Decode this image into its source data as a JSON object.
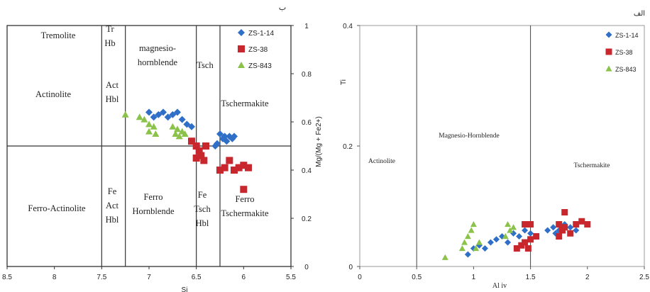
{
  "chart_data": [
    {
      "type": "scatter",
      "title": "ب",
      "xlabel": "Si",
      "ylabel": "Mg/(Mg + Fe2+)",
      "xlim": [
        8.5,
        5.5
      ],
      "ylim": [
        0,
        1
      ],
      "x_ticks": [
        "8.5",
        "8",
        "7.5",
        "7",
        "6.5",
        "6",
        "5.5"
      ],
      "y_ticks": [
        "0",
        "0.2",
        "0.4",
        "0.6",
        "0.8",
        "1"
      ],
      "legend_position": "top-right",
      "field_labels": [
        {
          "key": "tremolite",
          "lines": [
            "Tremolite"
          ]
        },
        {
          "key": "tr-hb",
          "lines": [
            "Tr",
            "Hb"
          ]
        },
        {
          "key": "magnesio-hornblende",
          "lines": [
            "magnesio-",
            "hornblende"
          ]
        },
        {
          "key": "tsch",
          "lines": [
            "Tsch"
          ]
        },
        {
          "key": "actinolite",
          "lines": [
            "Actinolite"
          ]
        },
        {
          "key": "act-hbl",
          "lines": [
            "Act",
            "Hbl"
          ]
        },
        {
          "key": "tschermakite",
          "lines": [
            "Tschermakite"
          ]
        },
        {
          "key": "ferro-actinolite",
          "lines": [
            "Ferro-Actinolite"
          ]
        },
        {
          "key": "fe-act-hbl",
          "lines": [
            "Fe",
            "Act",
            "Hbl"
          ]
        },
        {
          "key": "ferro-hornblende",
          "lines": [
            "Ferro",
            "Hornblende"
          ]
        },
        {
          "key": "fe-tsch-hbl",
          "lines": [
            "Fe",
            "Tsch",
            "Hbl"
          ]
        },
        {
          "key": "ferro-tschermakite",
          "lines": [
            "Ferro",
            "Tschermakite"
          ]
        }
      ],
      "boundaries": {
        "vertical_x": [
          7.5,
          7.25,
          6.5,
          6.25
        ],
        "horizontal_y": 0.5
      },
      "series": [
        {
          "name": "ZS-1-14",
          "color": "#2f6fc7",
          "marker": "diamond",
          "points": [
            [
              7.0,
              0.64
            ],
            [
              6.95,
              0.62
            ],
            [
              6.9,
              0.63
            ],
            [
              6.85,
              0.64
            ],
            [
              6.8,
              0.62
            ],
            [
              6.75,
              0.63
            ],
            [
              6.7,
              0.64
            ],
            [
              6.65,
              0.61
            ],
            [
              6.6,
              0.59
            ],
            [
              6.55,
              0.58
            ],
            [
              6.25,
              0.55
            ],
            [
              6.22,
              0.53
            ],
            [
              6.2,
              0.54
            ],
            [
              6.18,
              0.52
            ],
            [
              6.15,
              0.54
            ],
            [
              6.12,
              0.53
            ],
            [
              6.1,
              0.54
            ],
            [
              6.28,
              0.51
            ],
            [
              6.3,
              0.5
            ]
          ]
        },
        {
          "name": "ZS-38",
          "color": "#c8282d",
          "marker": "square",
          "points": [
            [
              6.55,
              0.52
            ],
            [
              6.5,
              0.5
            ],
            [
              6.47,
              0.48
            ],
            [
              6.45,
              0.46
            ],
            [
              6.42,
              0.44
            ],
            [
              6.5,
              0.45
            ],
            [
              6.4,
              0.5
            ],
            [
              6.15,
              0.44
            ],
            [
              6.2,
              0.41
            ],
            [
              6.1,
              0.4
            ],
            [
              6.05,
              0.41
            ],
            [
              6.0,
              0.42
            ],
            [
              5.95,
              0.41
            ],
            [
              6.25,
              0.4
            ],
            [
              6.0,
              0.32
            ]
          ]
        },
        {
          "name": "ZS-843",
          "color": "#8bc34a",
          "marker": "triangle",
          "points": [
            [
              7.25,
              0.63
            ],
            [
              7.1,
              0.62
            ],
            [
              7.05,
              0.61
            ],
            [
              7.0,
              0.59
            ],
            [
              6.95,
              0.58
            ],
            [
              7.0,
              0.56
            ],
            [
              6.93,
              0.55
            ],
            [
              6.75,
              0.58
            ],
            [
              6.7,
              0.57
            ],
            [
              6.65,
              0.56
            ],
            [
              6.62,
              0.55
            ],
            [
              6.72,
              0.55
            ],
            [
              6.68,
              0.54
            ]
          ]
        }
      ]
    },
    {
      "type": "scatter",
      "title": "الف",
      "xlabel": "Al iv",
      "ylabel": "Ti",
      "xlim": [
        0,
        2.5
      ],
      "ylim": [
        0,
        0.4
      ],
      "x_ticks": [
        "0",
        "0.5",
        "1",
        "1.5",
        "2",
        "2.5"
      ],
      "y_ticks": [
        "0",
        "0.2",
        "0.4"
      ],
      "legend_position": "top-right",
      "field_labels": [
        {
          "key": "actinolite",
          "lines": [
            "Actinolite"
          ]
        },
        {
          "key": "magnesio-hornblende",
          "lines": [
            "Magnesio-Hornblende"
          ]
        },
        {
          "key": "tschermakite",
          "lines": [
            "Tschermakite"
          ]
        }
      ],
      "boundaries": {
        "vertical_x": [
          0.5,
          1.5
        ]
      },
      "series": [
        {
          "name": "ZS-1-14",
          "color": "#2f6fc7",
          "marker": "diamond",
          "points": [
            [
              0.95,
              0.02
            ],
            [
              1.0,
              0.03
            ],
            [
              1.05,
              0.035
            ],
            [
              1.1,
              0.03
            ],
            [
              1.15,
              0.04
            ],
            [
              1.2,
              0.045
            ],
            [
              1.25,
              0.05
            ],
            [
              1.3,
              0.04
            ],
            [
              1.35,
              0.055
            ],
            [
              1.4,
              0.05
            ],
            [
              1.45,
              0.06
            ],
            [
              1.5,
              0.055
            ],
            [
              1.65,
              0.06
            ],
            [
              1.7,
              0.065
            ],
            [
              1.75,
              0.06
            ],
            [
              1.8,
              0.07
            ],
            [
              1.85,
              0.065
            ],
            [
              1.9,
              0.06
            ],
            [
              1.72,
              0.055
            ]
          ]
        },
        {
          "name": "ZS-38",
          "color": "#c8282d",
          "marker": "square",
          "points": [
            [
              1.38,
              0.03
            ],
            [
              1.42,
              0.035
            ],
            [
              1.45,
              0.04
            ],
            [
              1.5,
              0.045
            ],
            [
              1.55,
              0.05
            ],
            [
              1.48,
              0.03
            ],
            [
              1.45,
              0.07
            ],
            [
              1.5,
              0.07
            ],
            [
              1.75,
              0.05
            ],
            [
              1.78,
              0.06
            ],
            [
              1.8,
              0.065
            ],
            [
              1.85,
              0.055
            ],
            [
              1.9,
              0.07
            ],
            [
              1.95,
              0.075
            ],
            [
              2.0,
              0.07
            ],
            [
              1.8,
              0.09
            ],
            [
              1.75,
              0.07
            ]
          ]
        },
        {
          "name": "ZS-843",
          "color": "#8bc34a",
          "marker": "triangle",
          "points": [
            [
              0.75,
              0.015
            ],
            [
              0.9,
              0.03
            ],
            [
              0.92,
              0.04
            ],
            [
              0.95,
              0.05
            ],
            [
              0.98,
              0.06
            ],
            [
              1.0,
              0.07
            ],
            [
              1.05,
              0.04
            ],
            [
              1.02,
              0.03
            ],
            [
              1.3,
              0.07
            ],
            [
              1.32,
              0.06
            ],
            [
              1.35,
              0.065
            ],
            [
              1.28,
              0.05
            ]
          ]
        }
      ]
    }
  ]
}
